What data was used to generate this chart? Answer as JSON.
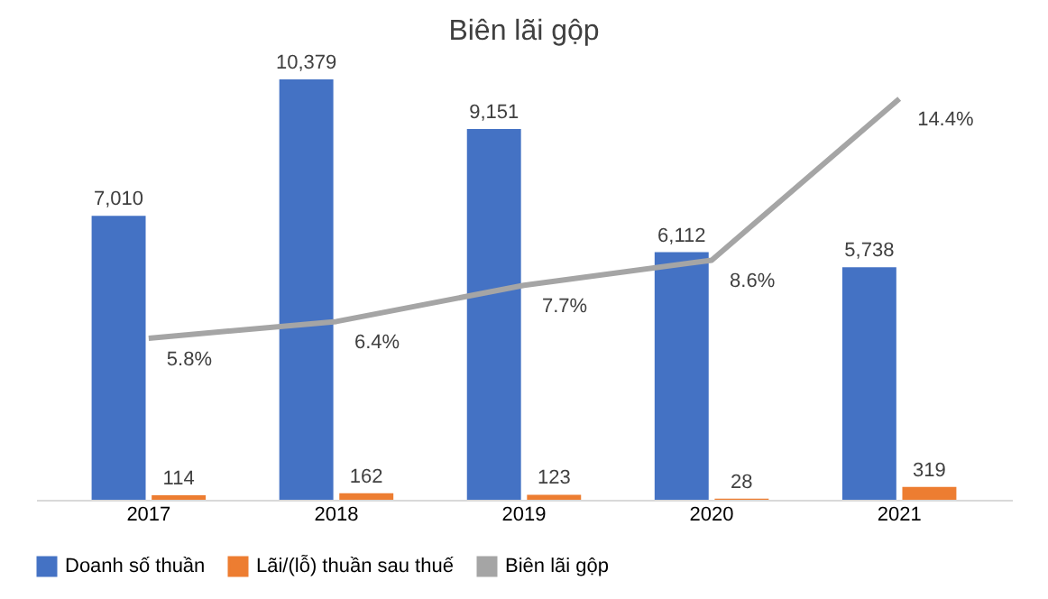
{
  "chart_data": {
    "type": "bar",
    "title": "Biên lãi gộp",
    "categories": [
      "2017",
      "2018",
      "2019",
      "2020",
      "2021"
    ],
    "series": [
      {
        "name": "Doanh số thuần",
        "color": "#4472c4",
        "values": [
          7010,
          10379,
          9151,
          6112,
          5738
        ],
        "value_labels": [
          "7,010",
          "10,379",
          "9,151",
          "6,112",
          "5,738"
        ]
      },
      {
        "name": "Lãi/(lỗ) thuần sau thuế",
        "color": "#ed7d31",
        "values": [
          114,
          162,
          123,
          28,
          319
        ],
        "value_labels": [
          "114",
          "162",
          "123",
          "28",
          "319"
        ]
      },
      {
        "name": "Biên lãi gộp",
        "type": "line",
        "axis": "y2",
        "color": "#a5a5a5",
        "values": [
          5.8,
          6.4,
          7.7,
          8.6,
          14.4
        ],
        "value_labels": [
          "5.8%",
          "6.4%",
          "7.7%",
          "8.6%",
          "14.4%"
        ]
      }
    ],
    "tick_labels": "x",
    "grid": false,
    "legend": "bottom",
    "marker": "none",
    "line_style": "solid"
  }
}
